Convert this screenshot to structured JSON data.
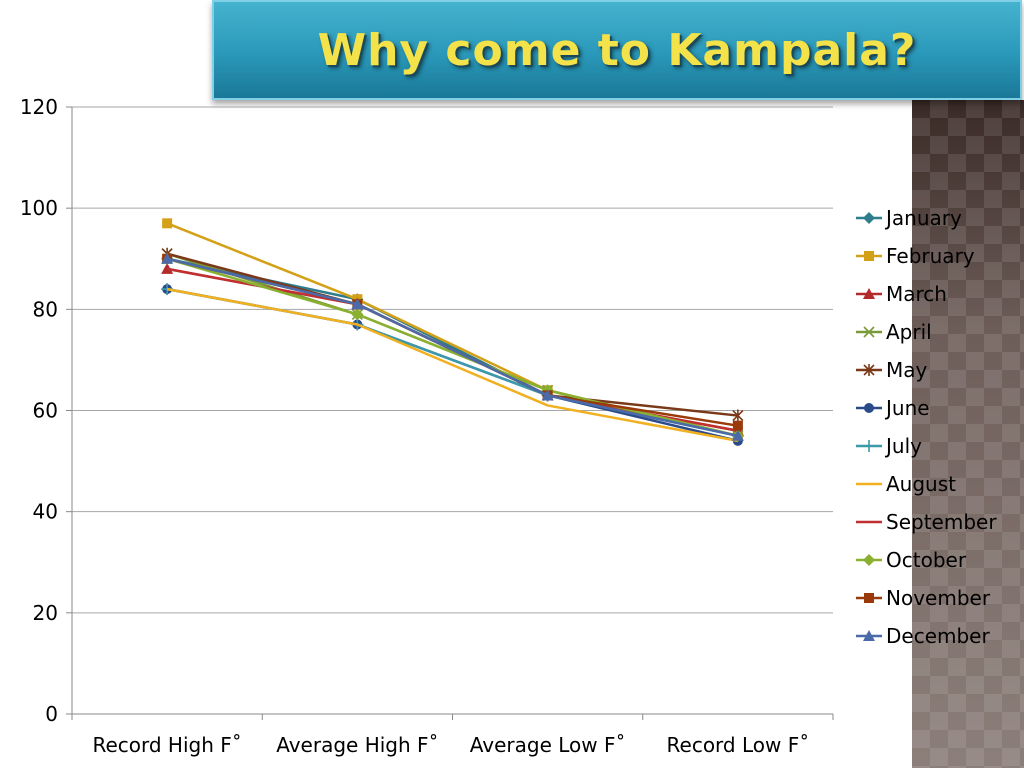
{
  "header": {
    "title": "Why come to Kampala?"
  },
  "chart_data": {
    "type": "line",
    "categories": [
      "Record High F˚",
      "Average High F˚",
      "Average Low F˚",
      "Record Low F˚"
    ],
    "ylim": [
      0,
      120
    ],
    "y_ticks": [
      "0",
      "20",
      "40",
      "60",
      "80",
      "100",
      "120"
    ],
    "grid": true,
    "legend": "right",
    "series": [
      {
        "name": "January",
        "color": "#2e7d8c",
        "marker": "diamond",
        "values": [
          90,
          82,
          63,
          55
        ]
      },
      {
        "name": "February",
        "color": "#d4a017",
        "marker": "square",
        "values": [
          97,
          82,
          64,
          55
        ]
      },
      {
        "name": "March",
        "color": "#b22a2a",
        "marker": "triangle",
        "values": [
          88,
          81,
          63,
          56
        ]
      },
      {
        "name": "April",
        "color": "#7a9a3a",
        "marker": "x",
        "values": [
          91,
          79,
          64,
          55
        ]
      },
      {
        "name": "May",
        "color": "#7a3a1a",
        "marker": "star",
        "values": [
          91,
          81,
          63,
          59
        ]
      },
      {
        "name": "June",
        "color": "#2a4a8a",
        "marker": "circle",
        "values": [
          84,
          77,
          63,
          54
        ]
      },
      {
        "name": "July",
        "color": "#3a9aaa",
        "marker": "plus",
        "values": [
          84,
          77,
          63,
          55
        ]
      },
      {
        "name": "August",
        "color": "#f0b020",
        "marker": "none",
        "values": [
          84,
          77,
          61,
          54
        ]
      },
      {
        "name": "September",
        "color": "#c03030",
        "marker": "none",
        "values": [
          88,
          81,
          63,
          56
        ]
      },
      {
        "name": "October",
        "color": "#8ab030",
        "marker": "diamond",
        "values": [
          90,
          79,
          64,
          55
        ]
      },
      {
        "name": "November",
        "color": "#9a3a0a",
        "marker": "square",
        "values": [
          90,
          81,
          63,
          57
        ]
      },
      {
        "name": "December",
        "color": "#4a6aaa",
        "marker": "triangle",
        "values": [
          90,
          81,
          63,
          55
        ]
      }
    ]
  }
}
